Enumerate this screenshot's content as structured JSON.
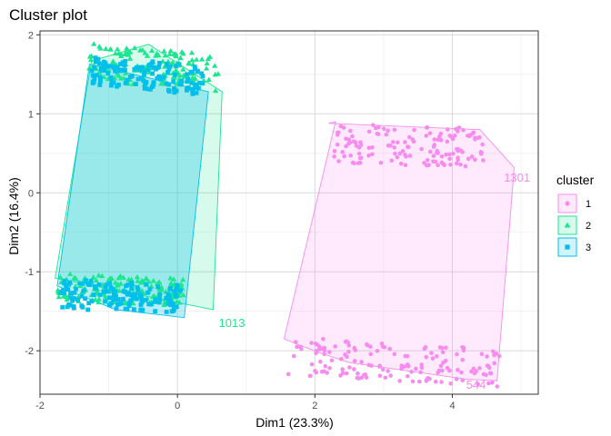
{
  "chart_data": {
    "type": "scatter",
    "title": "Cluster plot",
    "xlabel": "Dim1 (23.3%)",
    "ylabel": "Dim2 (16.4%)",
    "xlim": [
      -2.0,
      5.25
    ],
    "ylim": [
      -2.55,
      2.05
    ],
    "x_ticks": [
      -2,
      0,
      2,
      4
    ],
    "y_ticks": [
      -2,
      -1,
      0,
      1,
      2
    ],
    "grid": true,
    "legend": {
      "title": "cluster",
      "position": "right"
    },
    "series": [
      {
        "name": "1",
        "color": "#F78CEF",
        "marker": "circle",
        "hull": [
          [
            2.2,
            0.88
          ],
          [
            4.4,
            0.8
          ],
          [
            4.9,
            0.32
          ],
          [
            4.65,
            -2.38
          ],
          [
            4.2,
            -2.36
          ],
          [
            2.5,
            -2.15
          ],
          [
            2.05,
            -2.02
          ],
          [
            1.55,
            -1.85
          ],
          [
            2.3,
            0.9
          ]
        ],
        "clumps": [
          {
            "x": [
              2.25,
              4.45
            ],
            "y": [
              0.35,
              0.85
            ],
            "n": 140,
            "trend": -0.02
          },
          {
            "x": [
              1.6,
              4.7
            ],
            "y": [
              -2.38,
              -1.9
            ],
            "n": 150,
            "trend": -0.05
          }
        ],
        "annotation": [
          {
            "text": "1301",
            "x": 4.75,
            "y": 0.14
          },
          {
            "text": "544",
            "x": 4.2,
            "y": -2.48
          }
        ]
      },
      {
        "name": "2",
        "color": "#1CE68F",
        "marker": "triangle",
        "hull": [
          [
            -1.25,
            1.67
          ],
          [
            -0.42,
            1.88
          ],
          [
            0.65,
            1.28
          ],
          [
            0.52,
            -1.48
          ],
          [
            -1.78,
            -1.08
          ],
          [
            -1.25,
            1.67
          ]
        ],
        "clumps": [
          {
            "x": [
              -1.3,
              0.6
            ],
            "y": [
              1.35,
              1.82
            ],
            "n": 150,
            "trend": -0.08
          },
          {
            "x": [
              -1.75,
              0.1
            ],
            "y": [
              -1.4,
              -1.05
            ],
            "n": 160,
            "trend": -0.04
          }
        ],
        "annotation": [
          {
            "text": "1013",
            "x": 0.6,
            "y": -1.7
          }
        ]
      },
      {
        "name": "3",
        "color": "#00BFEB",
        "marker": "square",
        "hull": [
          [
            -1.28,
            1.63
          ],
          [
            0.45,
            1.28
          ],
          [
            0.1,
            -1.58
          ],
          [
            -0.9,
            -1.48
          ],
          [
            -1.75,
            -1.18
          ],
          [
            -1.28,
            1.63
          ]
        ],
        "clumps": [
          {
            "x": [
              -1.25,
              0.4
            ],
            "y": [
              1.3,
              1.68
            ],
            "n": 130,
            "trend": -0.08
          },
          {
            "x": [
              -1.7,
              0.05
            ],
            "y": [
              -1.5,
              -1.12
            ],
            "n": 140,
            "trend": -0.04
          }
        ],
        "annotation": []
      }
    ]
  }
}
